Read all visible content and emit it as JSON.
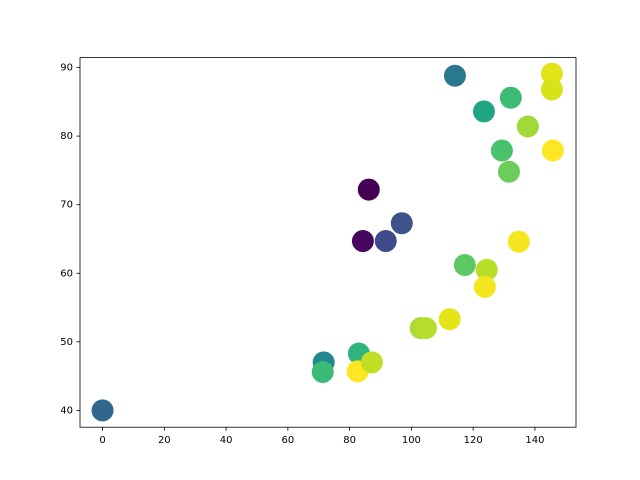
{
  "chart_data": {
    "type": "scatter",
    "x": [
      0,
      86.2,
      84.3,
      91.7,
      96.9,
      114.1,
      123.5,
      132.2,
      145.5,
      145.5,
      137.7,
      129.3,
      131.6,
      145.8,
      134.8,
      117.3,
      124.4,
      123.8,
      112.4,
      103.0,
      104.7,
      71.6,
      71.3,
      83.0,
      82.6,
      87.2
    ],
    "values": [
      40,
      72.2,
      64.7,
      64.7,
      67.3,
      88.8,
      83.6,
      85.6,
      89.1,
      86.8,
      81.4,
      77.9,
      74.8,
      77.9,
      64.6,
      61.2,
      60.5,
      58.0,
      53.3,
      52.0,
      52.0,
      47.0,
      45.6,
      48.3,
      45.7,
      47.0
    ],
    "colors": [
      "#31668e",
      "#440154",
      "#46085c",
      "#3e4a89",
      "#3b528b",
      "#2a788e",
      "#21a685",
      "#3dbc74",
      "#e2e418",
      "#d8e219",
      "#a0da39",
      "#4ac16d",
      "#6ccd5a",
      "#fde725",
      "#f6e620",
      "#5ec962",
      "#b8de29",
      "#f4e61e",
      "#e5e419",
      "#a8db34",
      "#b5de2b",
      "#23898e",
      "#3bbb75",
      "#2fb47c",
      "#fde725",
      "#c2df23"
    ],
    "xlim": [
      -7.3,
      153.3
    ],
    "ylim": [
      37.55,
      91.45
    ],
    "xticks": [
      0,
      20,
      40,
      60,
      80,
      100,
      120,
      140
    ],
    "yticks": [
      40,
      50,
      60,
      70,
      80,
      90
    ]
  }
}
